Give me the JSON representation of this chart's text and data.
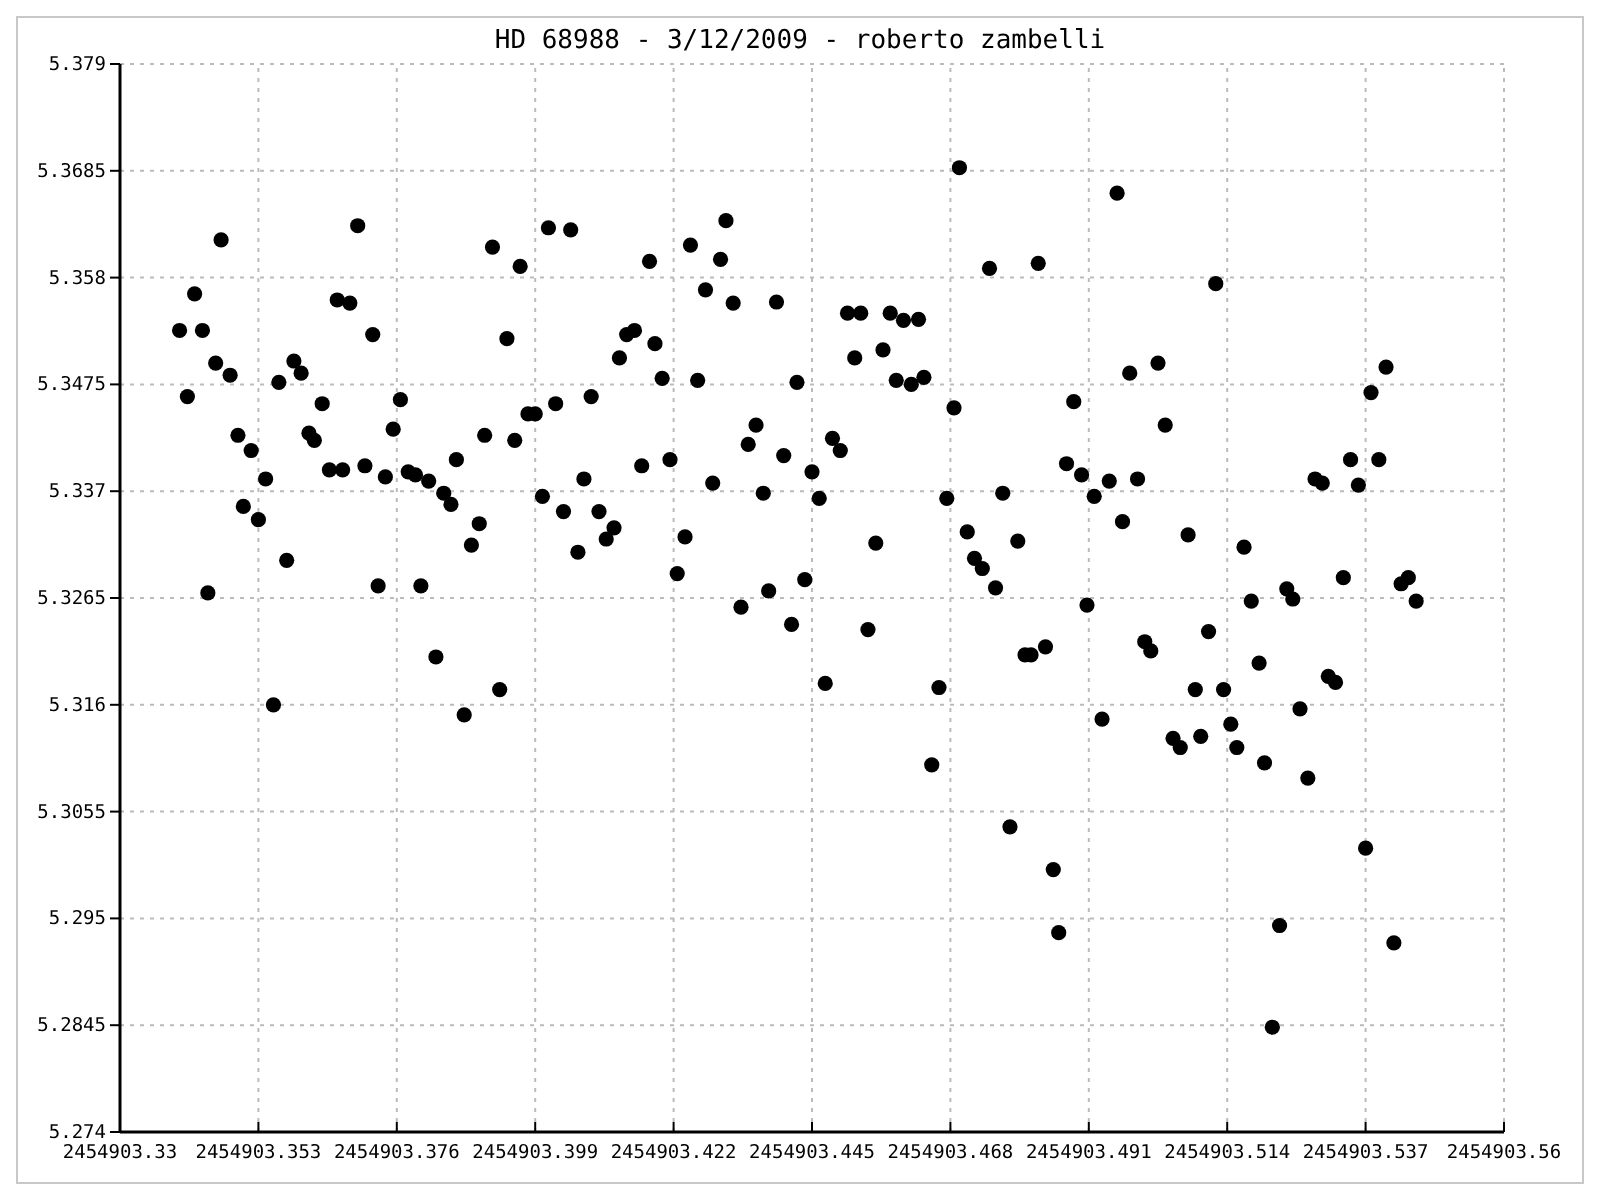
{
  "chart_data": {
    "type": "scatter",
    "title": "HD 68988 - 3/12/2009 - roberto zambelli",
    "xlim": [
      2454903.33,
      2454903.56
    ],
    "xticks": [
      2454903.33,
      2454903.353,
      2454903.376,
      2454903.399,
      2454903.422,
      2454903.445,
      2454903.468,
      2454903.491,
      2454903.514,
      2454903.537,
      2454903.56
    ],
    "ylim": [
      5.274,
      5.379
    ],
    "yticks": [
      5.274,
      5.2845,
      5.295,
      5.3055,
      5.316,
      5.3265,
      5.337,
      5.3475,
      5.358,
      5.3685,
      5.379
    ],
    "grid": true,
    "marker": "circle",
    "series": [
      {
        "color": "#000000",
        "x": [
          2454903.3399,
          2454903.3412,
          2454903.3424,
          2454903.3437,
          2454903.3446,
          2454903.3459,
          2454903.3468,
          2454903.3483,
          2454903.3496,
          2454903.3505,
          2454903.3518,
          2454903.353,
          2454903.3542,
          2454903.3555,
          2454903.3564,
          2454903.3577,
          2454903.3589,
          2454903.3601,
          2454903.3614,
          2454903.3623,
          2454903.3636,
          2454903.3648,
          2454903.3661,
          2454903.367,
          2454903.3682,
          2454903.3695,
          2454903.3707,
          2454903.372,
          2454903.3729,
          2454903.3741,
          2454903.3754,
          2454903.3766,
          2454903.3779,
          2454903.3791,
          2454903.38,
          2454903.3813,
          2454903.3825,
          2454903.3838,
          2454903.385,
          2454903.3859,
          2454903.3872,
          2454903.3884,
          2454903.3897,
          2454903.3906,
          2454903.3919,
          2454903.3931,
          2454903.3943,
          2454903.3956,
          2454903.3965,
          2454903.3978,
          2454903.399,
          2454903.4002,
          2454903.4012,
          2454903.4024,
          2454903.4037,
          2454903.4049,
          2454903.4061,
          2454903.4071,
          2454903.4083,
          2454903.4096,
          2454903.4108,
          2454903.4121,
          2454903.413,
          2454903.4142,
          2454903.4155,
          2454903.4167,
          2454903.418,
          2454903.4189,
          2454903.4201,
          2454903.4214,
          2454903.4226,
          2454903.4239,
          2454903.4248,
          2454903.426,
          2454903.4273,
          2454903.4285,
          2454903.4298,
          2454903.4307,
          2454903.4319,
          2454903.4332,
          2454903.4344,
          2454903.4357,
          2454903.4369,
          2454903.4378,
          2454903.4391,
          2454903.4403,
          2454903.4416,
          2454903.4425,
          2454903.4438,
          2454903.445,
          2454903.4462,
          2454903.4472,
          2454903.4484,
          2454903.4497,
          2454903.4509,
          2454903.4521,
          2454903.4531,
          2454903.4543,
          2454903.4556,
          2454903.4568,
          2454903.458,
          2454903.459,
          2454903.4602,
          2454903.4615,
          2454903.4627,
          2454903.4636,
          2454903.4649,
          2454903.4661,
          2454903.4674,
          2454903.4686,
          2454903.4695,
          2454903.4708,
          2454903.472,
          2454903.4733,
          2454903.4745,
          2454903.4755,
          2454903.4767,
          2454903.4779,
          2454903.4792,
          2454903.4804,
          2454903.4814,
          2454903.4826,
          2454903.4838,
          2454903.4851,
          2454903.486,
          2454903.4873,
          2454903.4885,
          2454903.4898,
          2454903.4907,
          2454903.4919,
          2454903.4932,
          2454903.4944,
          2454903.4957,
          2454903.4966,
          2454903.4978,
          2454903.4991,
          2454903.5003,
          2454903.5013,
          2454903.5025,
          2454903.5037,
          2454903.505,
          2454903.5062,
          2454903.5075,
          2454903.5087,
          2454903.5096,
          2454903.5109,
          2454903.5121,
          2454903.5134,
          2454903.5146,
          2454903.5156,
          2454903.5168,
          2454903.518,
          2454903.5193,
          2454903.5202,
          2454903.5215,
          2454903.5227,
          2454903.5239,
          2454903.5249,
          2454903.5261,
          2454903.5274,
          2454903.5286,
          2454903.5298,
          2454903.5308,
          2454903.532,
          2454903.5333,
          2454903.5345,
          2454903.5358,
          2454903.537,
          2454903.5379,
          2454903.5392,
          2454903.5404,
          2454903.5417,
          2454903.5429,
          2454903.5441,
          2454903.5454
        ],
        "values": [
          5.3528,
          5.3463,
          5.3564,
          5.3528,
          5.327,
          5.3496,
          5.3617,
          5.3484,
          5.3425,
          5.3355,
          5.341,
          5.3342,
          5.3382,
          5.316,
          5.3477,
          5.3302,
          5.3498,
          5.3486,
          5.3427,
          5.342,
          5.3456,
          5.3391,
          5.3558,
          5.3391,
          5.3555,
          5.3631,
          5.3395,
          5.3524,
          5.3277,
          5.3384,
          5.3431,
          5.346,
          5.3389,
          5.3386,
          5.3277,
          5.338,
          5.3207,
          5.3368,
          5.3357,
          5.3401,
          5.315,
          5.3317,
          5.3338,
          5.3425,
          5.361,
          5.3175,
          5.352,
          5.342,
          5.3591,
          5.3446,
          5.3446,
          5.3365,
          5.3629,
          5.3456,
          5.335,
          5.3627,
          5.331,
          5.3382,
          5.3463,
          5.335,
          5.3323,
          5.3334,
          5.3501,
          5.3524,
          5.3528,
          5.3395,
          5.3596,
          5.3515,
          5.3481,
          5.3401,
          5.3289,
          5.3325,
          5.3612,
          5.3479,
          5.3568,
          5.3378,
          5.3598,
          5.3636,
          5.3555,
          5.3256,
          5.3416,
          5.3435,
          5.3368,
          5.3272,
          5.3556,
          5.3405,
          5.3239,
          5.3477,
          5.3283,
          5.3389,
          5.3363,
          5.3181,
          5.3422,
          5.341,
          5.3545,
          5.3501,
          5.3545,
          5.3234,
          5.3319,
          5.3509,
          5.3545,
          5.3479,
          5.3538,
          5.3475,
          5.3539,
          5.3482,
          5.3101,
          5.3177,
          5.3363,
          5.3452,
          5.3688,
          5.333,
          5.3304,
          5.3294,
          5.3589,
          5.3275,
          5.3368,
          5.304,
          5.3321,
          5.3209,
          5.3209,
          5.3594,
          5.3217,
          5.2998,
          5.2936,
          5.3397,
          5.3458,
          5.3386,
          5.3258,
          5.3365,
          5.3146,
          5.338,
          5.3663,
          5.334,
          5.3486,
          5.3382,
          5.3222,
          5.3213,
          5.3496,
          5.3435,
          5.3127,
          5.3118,
          5.3327,
          5.3175,
          5.3129,
          5.3232,
          5.3574,
          5.3175,
          5.3141,
          5.3118,
          5.3315,
          5.3262,
          5.3201,
          5.3103,
          5.2843,
          5.2943,
          5.3274,
          5.3264,
          5.3156,
          5.3088,
          5.3382,
          5.3378,
          5.3188,
          5.3182,
          5.3285,
          5.3401,
          5.3376,
          5.3019,
          5.3467,
          5.3401,
          5.3492,
          5.2926,
          5.3279,
          5.3285,
          5.3262
        ]
      }
    ]
  }
}
